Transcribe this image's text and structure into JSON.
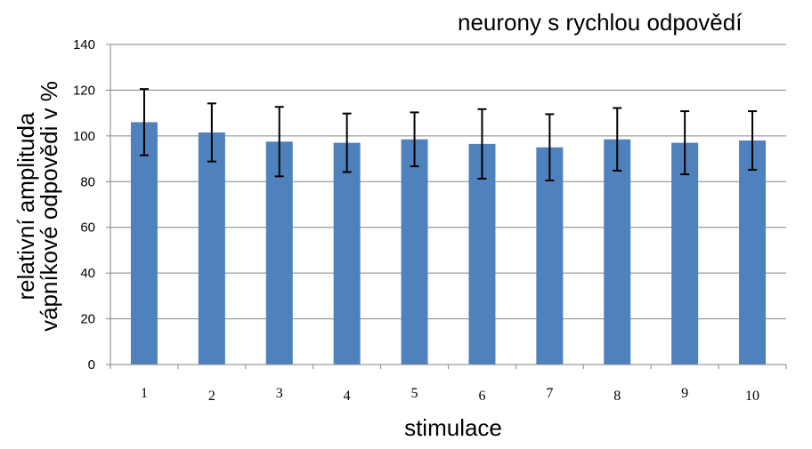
{
  "chart_data": {
    "type": "bar",
    "title": "neurony s rychlou odpovědí",
    "xlabel": "stimulace",
    "ylabel_lines": [
      "relativní amplituda",
      "vápníkové odpovědi v %"
    ],
    "categories": [
      "1",
      "2",
      "3",
      "4",
      "5",
      "6",
      "7",
      "8",
      "9",
      "10"
    ],
    "values": [
      106,
      101.5,
      97.5,
      97,
      98.5,
      96.5,
      95,
      98.5,
      97,
      98
    ],
    "errors": [
      14.5,
      12.7,
      15.2,
      12.8,
      11.8,
      15.2,
      14.5,
      13.7,
      13.8,
      12.8
    ],
    "yticks": [
      "0",
      "20",
      "40",
      "60",
      "80",
      "100",
      "120",
      "140"
    ],
    "ylim": [
      0,
      140
    ],
    "grid": true,
    "legend": "none",
    "colors": {
      "bar": "#4F81BD",
      "grid": "#868686",
      "error_bar": "#000000"
    }
  }
}
